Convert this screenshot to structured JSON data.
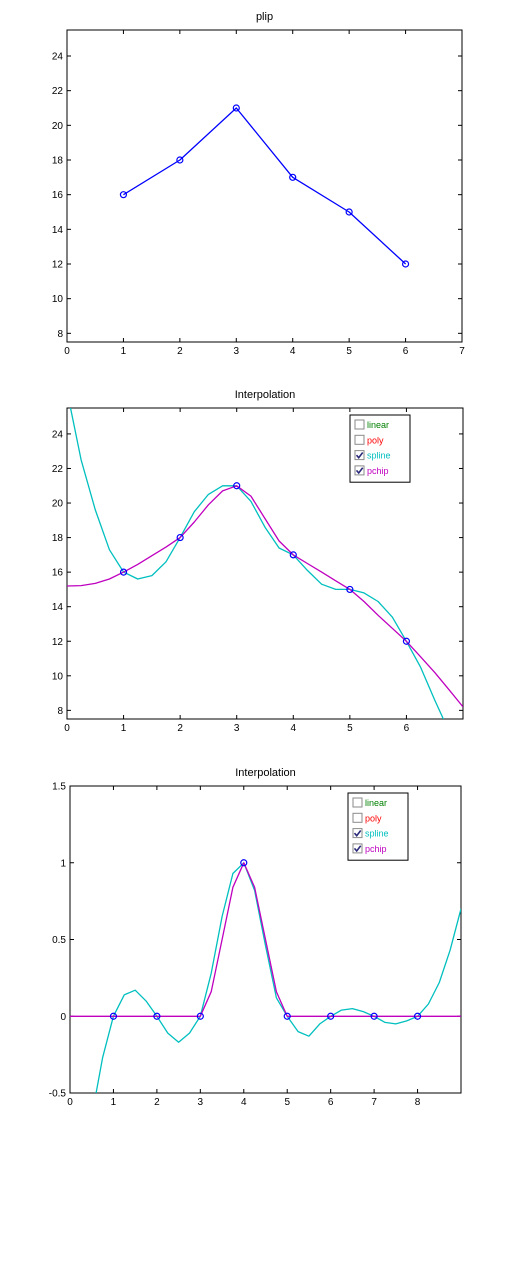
{
  "chart_data": [
    {
      "type": "line",
      "title": "plip",
      "xlim": [
        0,
        7
      ],
      "ylim": [
        7.5,
        25.5
      ],
      "xticks": [
        "0",
        "1",
        "2",
        "3",
        "4",
        "5",
        "6",
        "7"
      ],
      "yticks": [
        "8",
        "10",
        "12",
        "14",
        "16",
        "18",
        "20",
        "22",
        "24"
      ],
      "series": [
        {
          "color": "#0000ff",
          "marker": "circle",
          "x": [
            1,
            2,
            3,
            4,
            5,
            6
          ],
          "y": [
            16,
            18,
            21,
            17,
            15,
            12
          ]
        }
      ]
    },
    {
      "type": "line",
      "title": "Interpolation",
      "xlim": [
        0,
        7
      ],
      "ylim": [
        7.5,
        25.5
      ],
      "xticks": [
        "0",
        "1",
        "2",
        "3",
        "4",
        "5",
        "6"
      ],
      "yticks": [
        "8",
        "10",
        "12",
        "14",
        "16",
        "18",
        "20",
        "22",
        "24"
      ],
      "points": {
        "color": "#0000ff",
        "x": [
          1,
          2,
          3,
          4,
          5,
          6
        ],
        "y": [
          16,
          18,
          21,
          17,
          15,
          12
        ]
      },
      "legend": {
        "placement": "top-right",
        "items": [
          {
            "label": "linear",
            "checked": false,
            "color": "#008000"
          },
          {
            "label": "poly",
            "checked": false,
            "color": "#ff0000"
          },
          {
            "label": "spline",
            "checked": true,
            "color": "#00bfbf"
          },
          {
            "label": "pchip",
            "checked": true,
            "color": "#bf00bf"
          }
        ]
      },
      "series": [
        {
          "name": "spline",
          "color": "#00bfbf",
          "x": [
            0,
            0.25,
            0.5,
            0.75,
            1,
            1.25,
            1.5,
            1.75,
            2,
            2.25,
            2.5,
            2.75,
            3,
            3.25,
            3.5,
            3.75,
            4,
            4.25,
            4.5,
            4.75,
            5,
            5.25,
            5.5,
            5.75,
            6,
            6.25,
            6.5,
            6.75,
            7
          ],
          "y": [
            26.5,
            22.5,
            19.6,
            17.3,
            16.0,
            15.6,
            15.8,
            16.6,
            18.0,
            19.5,
            20.5,
            21.0,
            21.0,
            20.1,
            18.6,
            17.4,
            17.0,
            16.1,
            15.3,
            15.0,
            15.0,
            14.8,
            14.3,
            13.4,
            12.0,
            10.5,
            8.6,
            6.8,
            4.5
          ]
        },
        {
          "name": "pchip",
          "color": "#bf00bf",
          "x": [
            0,
            0.25,
            0.5,
            0.75,
            1,
            1.25,
            1.5,
            1.75,
            2,
            2.25,
            2.5,
            2.75,
            3,
            3.25,
            3.5,
            3.75,
            4,
            4.25,
            4.5,
            4.75,
            5,
            5.25,
            5.5,
            5.75,
            6,
            6.25,
            6.5,
            6.75,
            7
          ],
          "y": [
            15.2,
            15.22,
            15.35,
            15.6,
            16.0,
            16.45,
            16.95,
            17.45,
            18.0,
            18.9,
            19.9,
            20.7,
            21.0,
            20.4,
            19.1,
            17.8,
            17.0,
            16.5,
            16.0,
            15.5,
            15.0,
            14.3,
            13.5,
            12.75,
            12.0,
            11.1,
            10.2,
            9.2,
            8.2
          ]
        }
      ]
    },
    {
      "type": "line",
      "title": "Interpolation",
      "xlim": [
        0,
        9
      ],
      "ylim": [
        -0.5,
        1.5
      ],
      "xticks": [
        "0",
        "1",
        "2",
        "3",
        "4",
        "5",
        "6",
        "7",
        "8"
      ],
      "yticks": [
        "-0.5",
        "0",
        "0.5",
        "1",
        "1.5"
      ],
      "points": {
        "color": "#0000ff",
        "x": [
          1,
          2,
          3,
          4,
          5,
          6,
          7,
          8
        ],
        "y": [
          0,
          0,
          0,
          1,
          0,
          0,
          0,
          0
        ]
      },
      "legend": {
        "placement": "top-right",
        "items": [
          {
            "label": "linear",
            "checked": false,
            "color": "#008000"
          },
          {
            "label": "poly",
            "checked": false,
            "color": "#ff0000"
          },
          {
            "label": "spline",
            "checked": true,
            "color": "#00bfbf"
          },
          {
            "label": "pchip",
            "checked": true,
            "color": "#bf00bf"
          }
        ]
      },
      "series": [
        {
          "name": "spline",
          "color": "#00bfbf",
          "x": [
            0.6,
            0.75,
            1,
            1.25,
            1.5,
            1.75,
            2,
            2.25,
            2.5,
            2.75,
            3,
            3.25,
            3.5,
            3.75,
            4,
            4.25,
            4.5,
            4.75,
            5,
            5.25,
            5.5,
            5.75,
            6,
            6.25,
            6.5,
            6.75,
            7,
            7.25,
            7.5,
            7.75,
            8,
            8.25,
            8.5,
            8.75,
            9
          ],
          "y": [
            -0.5,
            -0.27,
            0,
            0.14,
            0.17,
            0.1,
            0,
            -0.11,
            -0.17,
            -0.11,
            0,
            0.28,
            0.65,
            0.93,
            1.0,
            0.82,
            0.46,
            0.12,
            0,
            -0.1,
            -0.13,
            -0.05,
            0,
            0.04,
            0.05,
            0.03,
            0,
            -0.04,
            -0.05,
            -0.03,
            0,
            0.08,
            0.22,
            0.43,
            0.7
          ]
        },
        {
          "name": "pchip",
          "color": "#bf00bf",
          "x": [
            0,
            1,
            2,
            3,
            3.25,
            3.5,
            3.75,
            4,
            4.25,
            4.5,
            4.75,
            5,
            6,
            7,
            8,
            9
          ],
          "y": [
            0,
            0,
            0,
            0,
            0.16,
            0.5,
            0.84,
            1.0,
            0.84,
            0.5,
            0.16,
            0,
            0,
            0,
            0,
            0
          ]
        }
      ]
    }
  ]
}
